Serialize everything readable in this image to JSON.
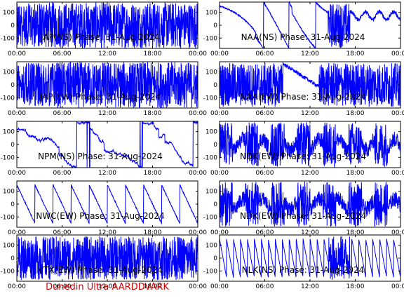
{
  "chart_data": [
    {
      "type": "line",
      "title": "JAP(NS) Phase: 31-Aug-2024",
      "x_ticks": [
        "00:00",
        "06:00",
        "12:00",
        "18:00",
        "00:00"
      ],
      "y_ticks": [
        "100",
        "0",
        "-100"
      ],
      "ylim": [
        -180,
        180
      ],
      "pattern": "dense",
      "color": "#0000ff"
    },
    {
      "type": "line",
      "title": "NAA(NS) Phase: 31-Aug-2024",
      "x_ticks": [
        "00:00",
        "06:00",
        "12:00",
        "18:00",
        "00:00"
      ],
      "y_ticks": [
        "100",
        "0",
        "-100"
      ],
      "ylim": [
        -180,
        180
      ],
      "pattern": "sweep",
      "color": "#0000ff"
    },
    {
      "type": "line",
      "title": "JAP(EW) Phase: 31-Aug-2024",
      "x_ticks": [
        "00:00",
        "06:00",
        "12:00",
        "18:00",
        "00:00"
      ],
      "y_ticks": [
        "100",
        "0",
        "-100"
      ],
      "ylim": [
        -180,
        180
      ],
      "pattern": "dense",
      "color": "#0000ff"
    },
    {
      "type": "line",
      "title": "NAA(EW) Phase: 31-Aug-2024",
      "x_ticks": [
        "00:00",
        "06:00",
        "12:00",
        "18:00",
        "00:00"
      ],
      "y_ticks": [
        "100",
        "0",
        "-100"
      ],
      "ylim": [
        -180,
        180
      ],
      "pattern": "mixed",
      "color": "#0000ff"
    },
    {
      "type": "line",
      "title": "NPM(NS) Phase: 31-Aug-2024",
      "x_ticks": [
        "00:00",
        "06:00",
        "12:00",
        "18:00",
        "00:00"
      ],
      "y_ticks": [
        "100",
        "0",
        "-100"
      ],
      "ylim": [
        -180,
        180
      ],
      "pattern": "drift",
      "color": "#0000ff"
    },
    {
      "type": "line",
      "title": "NDK(EW) Phase: 31-Aug-2024",
      "x_ticks": [
        "00:00",
        "06:00",
        "12:00",
        "18:00",
        "00:00"
      ],
      "y_ticks": [
        "100",
        "0",
        "-100"
      ],
      "ylim": [
        -180,
        180
      ],
      "pattern": "bursts",
      "color": "#0000ff"
    },
    {
      "type": "line",
      "title": "NWC(EW) Phase: 31-Aug-2024",
      "x_ticks": [
        "00:00",
        "06:00",
        "12:00",
        "18:00",
        "00:00"
      ],
      "y_ticks": [
        "100",
        "0",
        "-100"
      ],
      "ylim": [
        -180,
        180
      ],
      "pattern": "sawtooth",
      "color": "#0000ff"
    },
    {
      "type": "line",
      "title": "NDK(EW) Phase: 31-Aug-2024",
      "x_ticks": [
        "00:00",
        "06:00",
        "12:00",
        "18:00",
        "00:00"
      ],
      "y_ticks": [
        "100",
        "0",
        "-100"
      ],
      "ylim": [
        -180,
        180
      ],
      "pattern": "bursts",
      "color": "#0000ff"
    },
    {
      "type": "line",
      "title": "VTX(EW) Phase: 31-Aug-2024",
      "x_ticks": [
        "00:00",
        "06:00",
        "12:00",
        "18:00",
        "00:00"
      ],
      "y_ticks": [
        "100",
        "0",
        "-100"
      ],
      "ylim": [
        -180,
        180
      ],
      "pattern": "noisy",
      "color": "#0000ff"
    },
    {
      "type": "line",
      "title": "NLK(NS) Phase: 31-Aug-2024",
      "x_ticks": [
        "00:00",
        "06:00",
        "12:00",
        "18:00",
        "00:00"
      ],
      "y_ticks": [
        "100",
        "0",
        "-100"
      ],
      "ylim": [
        -180,
        180
      ],
      "pattern": "sawfast",
      "color": "#0000ff"
    }
  ],
  "footer": "Dunedin Ultra AARDDVARK"
}
